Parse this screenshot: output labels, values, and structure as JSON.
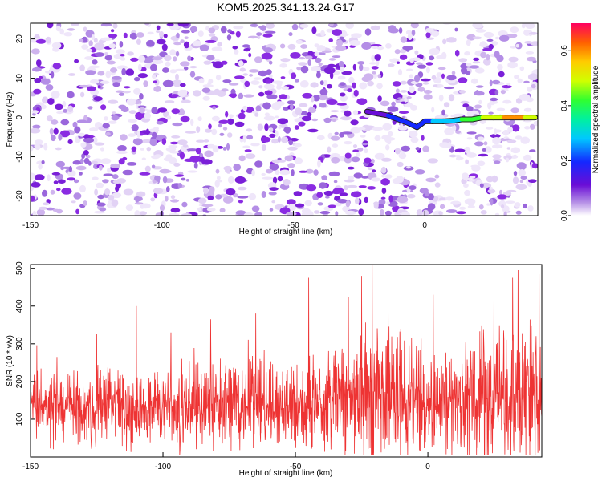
{
  "title": "KOM5.2025.341.13.24.G17",
  "colors": {
    "snr_line": "#ee3333",
    "noise_strong": "#8a2be2",
    "noise_light": "#d6c2ef"
  },
  "chart_data": [
    {
      "type": "heatmap",
      "xlabel": "Height of straight line (km)",
      "ylabel": "Frequency (Hz)",
      "xlim": [
        -150,
        43
      ],
      "ylim": [
        -25,
        24
      ],
      "x_ticks": [
        -150,
        -100,
        -50,
        0
      ],
      "y_ticks": [
        -20,
        -10,
        0,
        10,
        20
      ],
      "x_tick_labels": [
        "-150",
        "-100",
        "-50",
        "0"
      ],
      "y_tick_labels": [
        "-20",
        "-10",
        "0",
        "10",
        "20"
      ],
      "colorbar": {
        "label": "Normalized spectral amplitude",
        "range": [
          0,
          0.7
        ],
        "ticks": [
          0.0,
          0.2,
          0.4,
          0.6
        ],
        "tick_labels": [
          "0.0",
          "0.2",
          "0.4",
          "0.6"
        ],
        "colormap": "rainbow"
      },
      "signal_track": [
        {
          "x": -22,
          "y": 1.5,
          "a": 0.12
        },
        {
          "x": -18,
          "y": 1.0,
          "a": 0.14
        },
        {
          "x": -14,
          "y": 0.5,
          "a": 0.16
        },
        {
          "x": -10,
          "y": -0.5,
          "a": 0.2
        },
        {
          "x": -6,
          "y": -1.5,
          "a": 0.22
        },
        {
          "x": -3,
          "y": -2.5,
          "a": 0.28
        },
        {
          "x": 0,
          "y": -1.0,
          "a": 0.25
        },
        {
          "x": 3,
          "y": -1.0,
          "a": 0.3
        },
        {
          "x": 7,
          "y": -1.0,
          "a": 0.32
        },
        {
          "x": 11,
          "y": -0.8,
          "a": 0.35
        },
        {
          "x": 14,
          "y": -0.5,
          "a": 0.38
        },
        {
          "x": 18,
          "y": -0.5,
          "a": 0.42
        },
        {
          "x": 22,
          "y": 0.0,
          "a": 0.5
        },
        {
          "x": 26,
          "y": 0.0,
          "a": 0.55
        },
        {
          "x": 30,
          "y": 0.0,
          "a": 0.6
        },
        {
          "x": 34,
          "y": 0.0,
          "a": 0.68
        },
        {
          "x": 38,
          "y": 0.0,
          "a": 0.62
        },
        {
          "x": 42,
          "y": 0.0,
          "a": 0.55
        }
      ]
    },
    {
      "type": "line",
      "xlabel": "Height of straight line (km)",
      "ylabel": "SNR (10 * v/v)",
      "xlim": [
        -150,
        43
      ],
      "ylim": [
        0,
        510
      ],
      "x_ticks": [
        -150,
        -100,
        -50,
        0
      ],
      "y_ticks": [
        100,
        200,
        300,
        400,
        500
      ],
      "x_tick_labels": [
        "-150",
        "-100",
        "-50",
        "0"
      ],
      "y_tick_labels": [
        "100",
        "200",
        "300",
        "400",
        "500"
      ],
      "baseline_profile": [
        {
          "x": -150,
          "base": 130,
          "spread": 110
        },
        {
          "x": -100,
          "base": 130,
          "spread": 130
        },
        {
          "x": -50,
          "base": 135,
          "spread": 140
        },
        {
          "x": -30,
          "base": 150,
          "spread": 190
        },
        {
          "x": -20,
          "base": 175,
          "spread": 230
        },
        {
          "x": 0,
          "base": 145,
          "spread": 170
        },
        {
          "x": 20,
          "base": 155,
          "spread": 210
        },
        {
          "x": 43,
          "base": 175,
          "spread": 250
        }
      ],
      "peaks": [
        {
          "x": -140,
          "y": 265
        },
        {
          "x": -125,
          "y": 325
        },
        {
          "x": -110,
          "y": 400
        },
        {
          "x": -97,
          "y": 330
        },
        {
          "x": -82,
          "y": 365
        },
        {
          "x": -65,
          "y": 380
        },
        {
          "x": -45,
          "y": 475
        },
        {
          "x": -30,
          "y": 425
        },
        {
          "x": -25,
          "y": 480
        },
        {
          "x": -21,
          "y": 510
        },
        {
          "x": -15,
          "y": 430
        },
        {
          "x": 2,
          "y": 430
        },
        {
          "x": 25,
          "y": 430
        },
        {
          "x": 32,
          "y": 475
        },
        {
          "x": 34,
          "y": 495
        },
        {
          "x": 42,
          "y": 485
        }
      ]
    }
  ]
}
